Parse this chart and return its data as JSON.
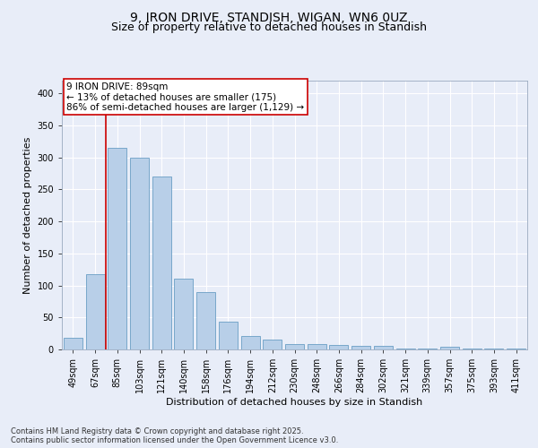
{
  "title_line1": "9, IRON DRIVE, STANDISH, WIGAN, WN6 0UZ",
  "title_line2": "Size of property relative to detached houses in Standish",
  "xlabel": "Distribution of detached houses by size in Standish",
  "ylabel": "Number of detached properties",
  "categories": [
    "49sqm",
    "67sqm",
    "85sqm",
    "103sqm",
    "121sqm",
    "140sqm",
    "158sqm",
    "176sqm",
    "194sqm",
    "212sqm",
    "230sqm",
    "248sqm",
    "266sqm",
    "284sqm",
    "302sqm",
    "321sqm",
    "339sqm",
    "357sqm",
    "375sqm",
    "393sqm",
    "411sqm"
  ],
  "values": [
    18,
    118,
    315,
    300,
    270,
    110,
    90,
    44,
    21,
    15,
    9,
    8,
    7,
    6,
    5,
    2,
    1,
    4,
    1,
    1,
    2
  ],
  "bar_color": "#b8cfe8",
  "bar_edge_color": "#6a9ec5",
  "highlight_index": 2,
  "highlight_line_color": "#cc0000",
  "annotation_text": "9 IRON DRIVE: 89sqm\n← 13% of detached houses are smaller (175)\n86% of semi-detached houses are larger (1,129) →",
  "annotation_box_color": "#ffffff",
  "annotation_box_edge_color": "#cc0000",
  "ylim": [
    0,
    420
  ],
  "yticks": [
    0,
    50,
    100,
    150,
    200,
    250,
    300,
    350,
    400
  ],
  "footer_line1": "Contains HM Land Registry data © Crown copyright and database right 2025.",
  "footer_line2": "Contains public sector information licensed under the Open Government Licence v3.0.",
  "background_color": "#e8edf8",
  "plot_bg_color": "#e8edf8",
  "grid_color": "#ffffff",
  "title_fontsize": 10,
  "subtitle_fontsize": 9,
  "axis_label_fontsize": 8,
  "tick_fontsize": 7,
  "annotation_fontsize": 7.5,
  "footer_fontsize": 6
}
